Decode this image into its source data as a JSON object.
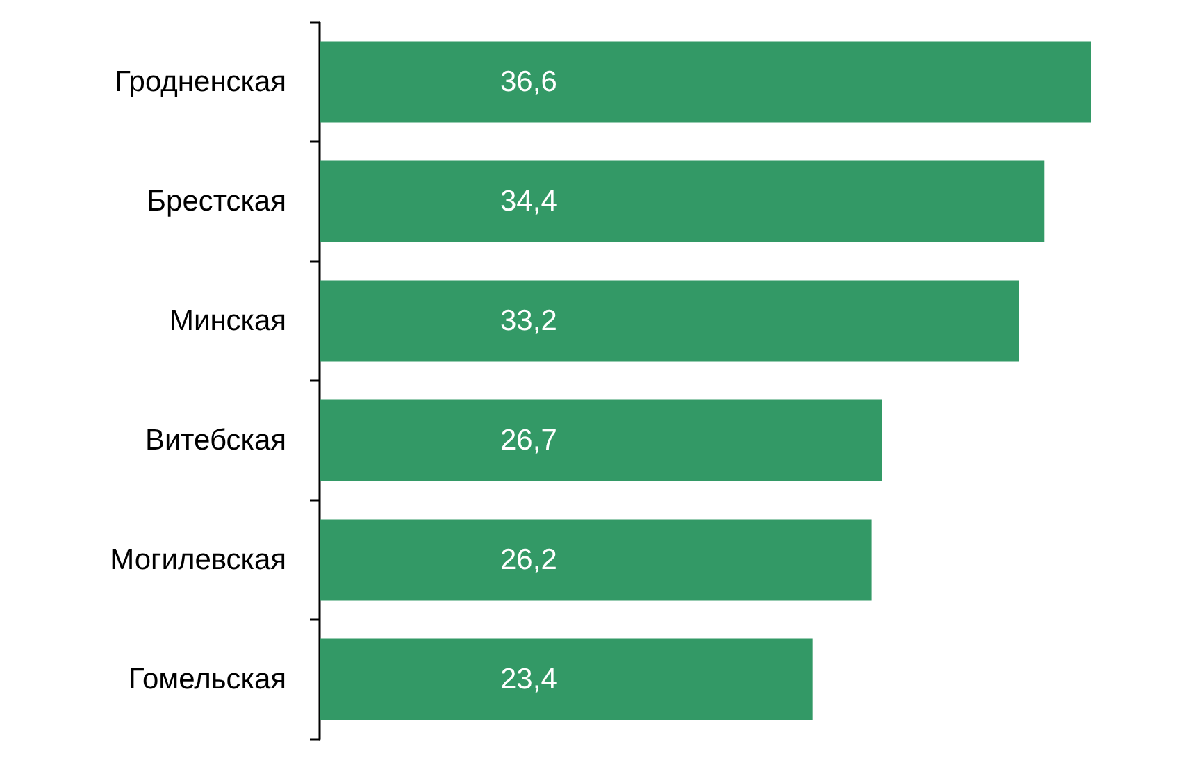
{
  "chart_data": {
    "type": "bar",
    "orientation": "horizontal",
    "categories": [
      "Гродненская",
      "Брестская",
      "Минская",
      "Витебская",
      "Могилевская",
      "Гомельская"
    ],
    "values": [
      36.6,
      34.4,
      33.2,
      26.7,
      26.2,
      23.4
    ],
    "value_labels": [
      "36,6",
      "34,4",
      "33,2",
      "26,7",
      "26,2",
      "23,4"
    ],
    "color": "#339966"
  }
}
